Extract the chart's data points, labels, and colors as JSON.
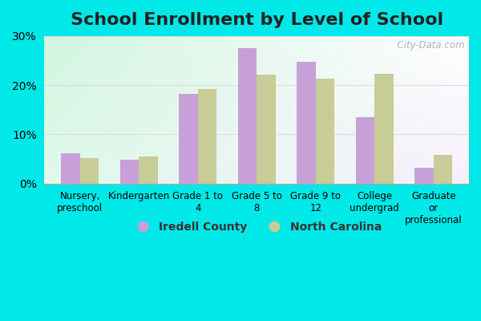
{
  "title": "School Enrollment by Level of School",
  "categories": [
    "Nursery,\npreschool",
    "Kindergarten",
    "Grade 1 to\n4",
    "Grade 5 to\n8",
    "Grade 9 to\n12",
    "College\nundergrad",
    "Graduate\nor\nprofessional"
  ],
  "iredell": [
    6.2,
    4.8,
    18.2,
    27.5,
    24.8,
    13.5,
    3.2
  ],
  "nc": [
    5.2,
    5.5,
    19.2,
    22.2,
    21.3,
    22.3,
    5.8
  ],
  "iredell_color": "#c8a0d8",
  "nc_color": "#c8cc96",
  "iredell_label": "Iredell County",
  "nc_label": "North Carolina",
  "ylim": [
    0,
    30
  ],
  "yticks": [
    0,
    10,
    20,
    30
  ],
  "ytick_labels": [
    "0%",
    "10%",
    "20%",
    "30%"
  ],
  "bg_outer": "#00e8e8",
  "title_fontsize": 16,
  "watermark": "  City-Data.com",
  "grid_color": "#dddddd",
  "bar_width": 0.32
}
